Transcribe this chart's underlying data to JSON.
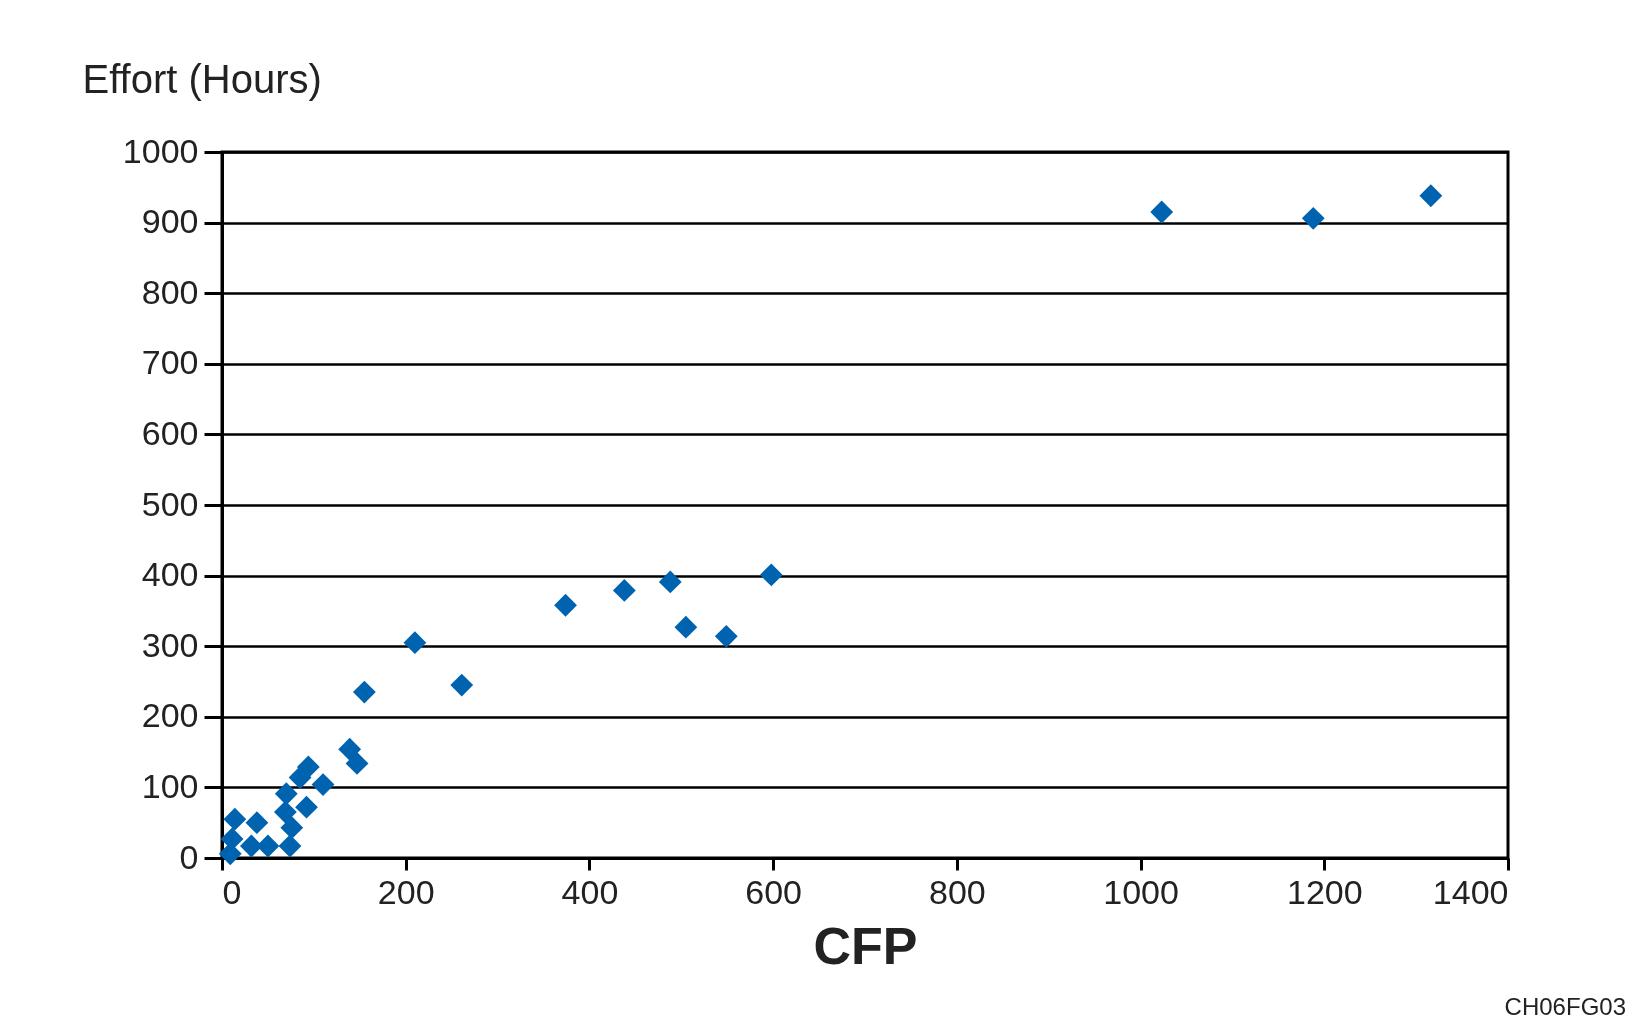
{
  "chart_data": {
    "type": "scatter",
    "xlabel": "CFP",
    "ylabel": "Effort (Hours)",
    "annotations": [
      "CH06FG03"
    ],
    "x": [
      1023,
      1188,
      1316,
      598,
      549,
      505,
      488,
      438,
      374,
      261,
      210,
      155,
      139,
      147,
      94,
      110,
      70,
      92,
      85,
      69,
      76,
      74,
      14,
      38,
      11,
      32,
      50,
      9
    ],
    "series": [
      {
        "color": "#0063b0",
        "values": [
          915,
          906,
          938,
          401,
          314,
          327,
          391,
          379,
          358,
          245,
          305,
          235,
          154,
          134,
          129,
          104,
          91,
          72,
          114,
          65,
          43,
          17,
          55,
          50,
          27,
          17,
          17,
          6
        ]
      }
    ],
    "xlim": [
      0,
      1400
    ],
    "xticks": [
      0,
      200,
      400,
      600,
      800,
      1000,
      1200,
      1400
    ],
    "ylim": [
      0,
      1000
    ],
    "yticks": [
      0,
      100,
      200,
      300,
      400,
      500,
      600,
      700,
      800,
      900,
      1000
    ],
    "grid": "y",
    "marker": "diamond"
  }
}
